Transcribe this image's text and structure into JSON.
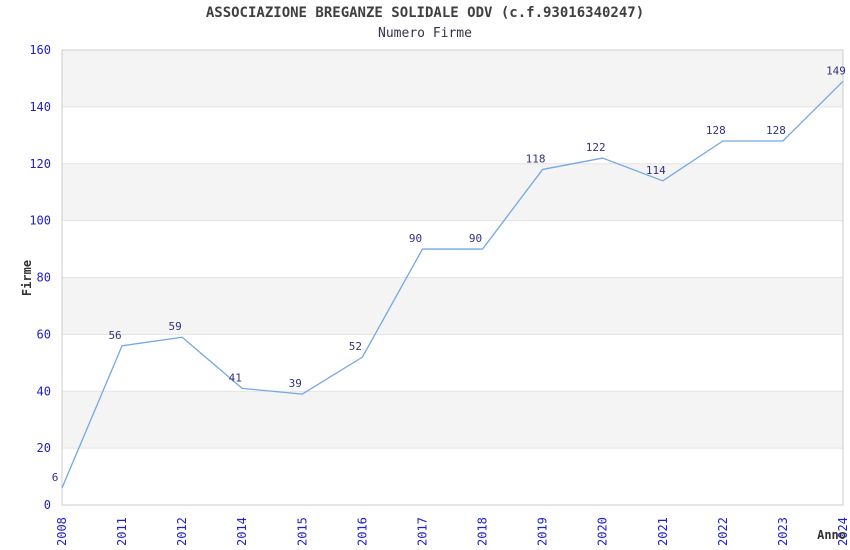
{
  "header": {
    "title": "ASSOCIAZIONE BREGANZE SOLIDALE ODV (c.f.93016340247)",
    "subtitle": "Numero Firme"
  },
  "chart_data": {
    "type": "line",
    "title": "ASSOCIAZIONE BREGANZE SOLIDALE ODV (c.f.93016340247)",
    "subtitle": "Numero Firme",
    "xlabel": "Anno",
    "ylabel": "Firme",
    "categories": [
      "2008",
      "2011",
      "2012",
      "2014",
      "2015",
      "2016",
      "2017",
      "2018",
      "2019",
      "2020",
      "2021",
      "2022",
      "2023",
      "2024"
    ],
    "values": [
      6,
      56,
      59,
      41,
      39,
      52,
      90,
      90,
      118,
      122,
      114,
      128,
      128,
      149
    ],
    "ylim": [
      0,
      160
    ],
    "ytick_step": 20,
    "yticks": [
      0,
      20,
      40,
      60,
      80,
      100,
      120,
      140,
      160
    ],
    "grid": true,
    "legend_position": "none",
    "point_labels_visible": true,
    "colors": {
      "line": "#74a9e4",
      "tick_labels": "#2020cc",
      "point_labels": "#32327e",
      "axis_titles": "#333333",
      "title_color": "#3f3f3f",
      "subtitle_color": "#333348",
      "band_fill": "#f4f4f4",
      "band_alt_fill": "#ffffff",
      "grid_line": "#e3e3e3",
      "plot_border": "#cccccc",
      "background": "#ffffff"
    }
  }
}
